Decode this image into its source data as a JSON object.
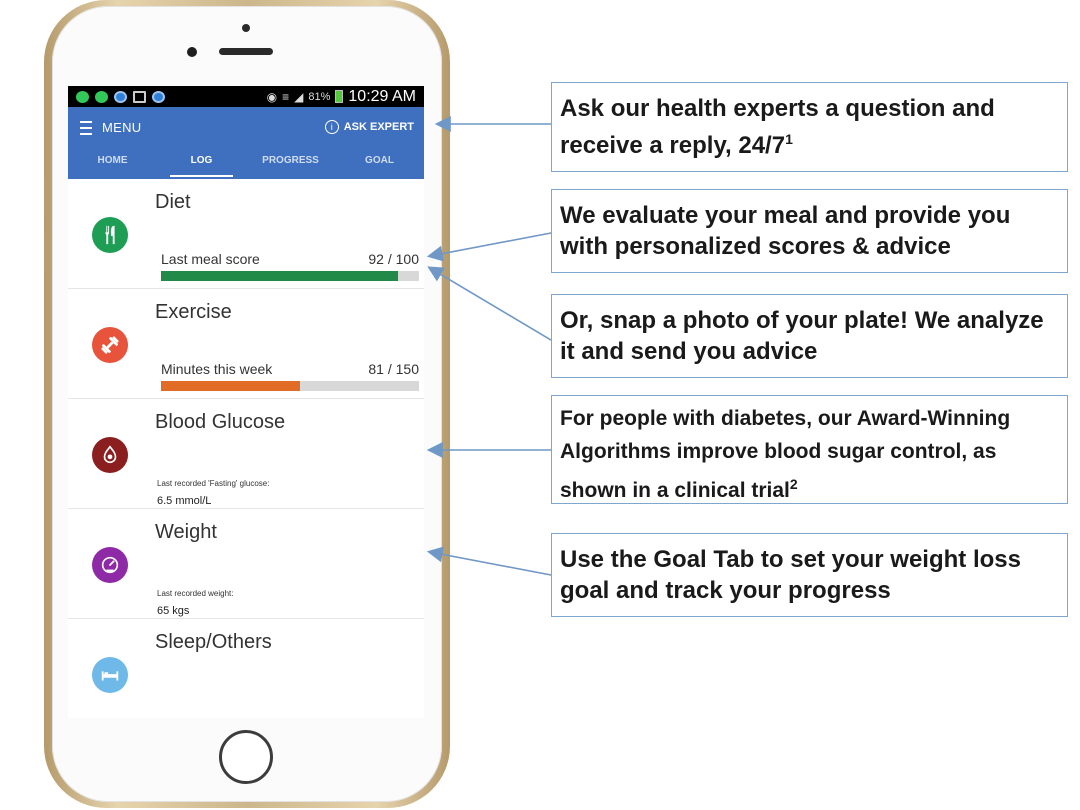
{
  "status_bar": {
    "battery_percent": "81%",
    "time": "10:29 AM"
  },
  "app_bar": {
    "menu_label": "MENU",
    "ask_expert_label": "ASK EXPERT",
    "tabs": [
      {
        "label": "HOME",
        "active": false
      },
      {
        "label": "LOG",
        "active": true
      },
      {
        "label": "PROGRESS",
        "active": false
      },
      {
        "label": "GOAL",
        "active": false
      }
    ]
  },
  "cards": {
    "diet": {
      "title": "Diet",
      "icon": "fork-knife-icon",
      "color": "#1e9e55",
      "progress_label": "Last meal score",
      "progress_value": "92 / 100",
      "progress_fraction": 0.92,
      "bar_color": "#218a48"
    },
    "exercise": {
      "title": "Exercise",
      "icon": "dumbbell-icon",
      "color": "#e8533b",
      "progress_label": "Minutes this week",
      "progress_value": "81 / 150",
      "progress_fraction": 0.54,
      "bar_color": "#e06c25"
    },
    "glucose": {
      "title": "Blood Glucose",
      "icon": "blood-drop-icon",
      "color": "#8b1e1e",
      "recorded_label": "Last recorded 'Fasting' glucose:",
      "recorded_value": "6.5 mmol/L"
    },
    "weight": {
      "title": "Weight",
      "icon": "scale-gauge-icon",
      "color": "#8e2aa6",
      "recorded_label": "Last recorded weight:",
      "recorded_value": "65 kgs"
    },
    "sleep": {
      "title": "Sleep/Others",
      "icon": "bed-icon",
      "color": "#6fb9e8"
    }
  },
  "callouts": {
    "ask_expert": {
      "text": "Ask our health experts a question and receive a reply, 24/7",
      "sup": "1"
    },
    "meal_score": {
      "text": "We evaluate your meal and provide you with personalized scores & advice"
    },
    "snap_photo": {
      "text": "Or, snap a photo of your plate!  We analyze it and send you advice"
    },
    "diabetes": {
      "text": "For people with diabetes, our Award-Winning Algorithms improve blood sugar control, as shown in a clinical trial",
      "sup": "2"
    },
    "goal_tab": {
      "text": "Use the Goal Tab to set your weight loss goal and track your progress"
    }
  },
  "colors": {
    "app_bar": "#3f6fbf",
    "arrow": "#6f98c6",
    "callout_border": "#7fa6cc"
  }
}
